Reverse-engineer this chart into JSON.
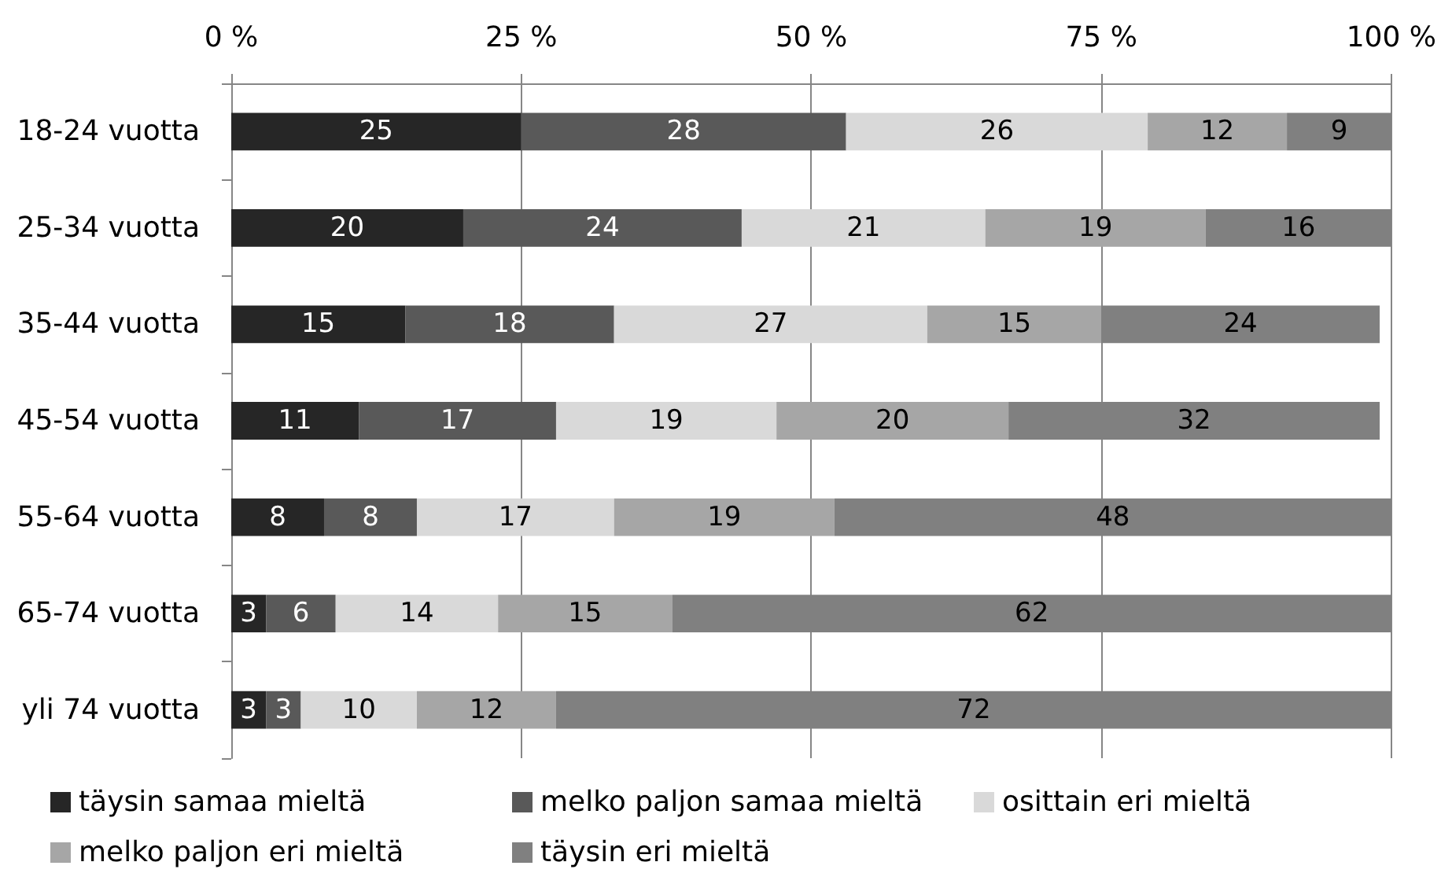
{
  "chart_data": {
    "type": "bar",
    "orientation": "horizontal",
    "stacked": true,
    "categories": [
      "18-24 vuotta",
      "25-34 vuotta",
      "35-44 vuotta",
      "45-54 vuotta",
      "55-64 vuotta",
      "65-74 vuotta",
      "yli 74 vuotta"
    ],
    "series": [
      {
        "name": "täysin samaa mieltä",
        "color": "#262626",
        "values": [
          25,
          20,
          15,
          11,
          8,
          3,
          3
        ]
      },
      {
        "name": "melko paljon samaa mieltä",
        "color": "#595959",
        "values": [
          28,
          24,
          18,
          17,
          8,
          6,
          3
        ]
      },
      {
        "name": "osittain eri mieltä",
        "color": "#d9d9d9",
        "values": [
          26,
          21,
          27,
          19,
          17,
          14,
          10
        ]
      },
      {
        "name": "melko paljon eri mieltä",
        "color": "#a6a6a6",
        "values": [
          12,
          19,
          15,
          20,
          19,
          15,
          12
        ]
      },
      {
        "name": "täysin eri mieltä",
        "color": "#808080",
        "values": [
          9,
          16,
          24,
          32,
          48,
          62,
          72
        ]
      }
    ],
    "xlim": [
      0,
      100
    ],
    "xticks": [
      {
        "value": 0,
        "label": "0 %"
      },
      {
        "value": 25,
        "label": "25 %"
      },
      {
        "value": 50,
        "label": "50 %"
      },
      {
        "value": 75,
        "label": "75 %"
      },
      {
        "value": 100,
        "label": "100 %"
      }
    ],
    "grid": "x",
    "legend": "bottom",
    "data_labels": true
  }
}
